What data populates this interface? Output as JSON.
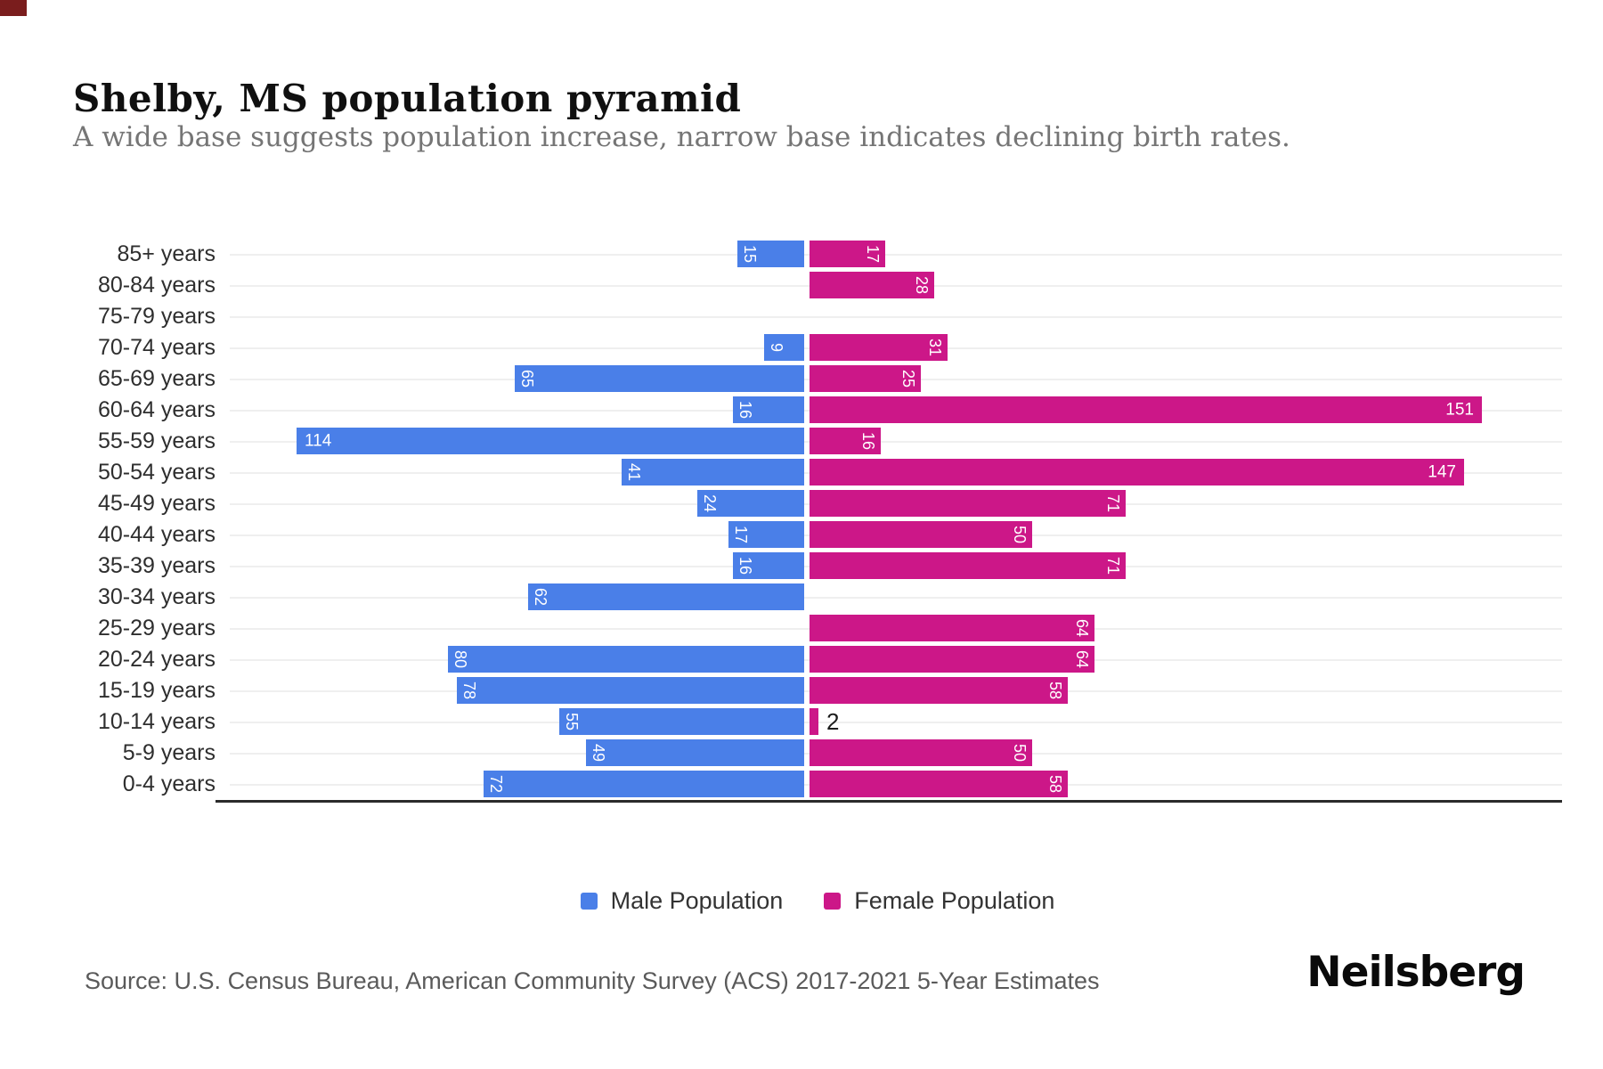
{
  "page": {
    "title": "Shelby, MS population pyramid",
    "subtitle": "A wide base suggests population increase, narrow base indicates declining birth rates.",
    "source": "Source: U.S. Census Bureau, American Community Survey (ACS) 2017-2021 5-Year Estimates",
    "brand": "Neilsberg"
  },
  "legend": {
    "male_label": "Male Population",
    "female_label": "Female Population"
  },
  "colors": {
    "male": "#4a7fe8",
    "female": "#cc1788",
    "gridline": "#efefef",
    "baseline": "#2b2b2b",
    "title": "#101010",
    "subtitle": "#757575"
  },
  "chart_data": {
    "type": "bar",
    "subtype": "population-pyramid",
    "orientation": "horizontal",
    "title": "Shelby, MS population pyramid",
    "categories": [
      "85+ years",
      "80-84 years",
      "75-79 years",
      "70-74 years",
      "65-69 years",
      "60-64 years",
      "55-59 years",
      "50-54 years",
      "45-49 years",
      "40-44 years",
      "35-39 years",
      "30-34 years",
      "25-29 years",
      "20-24 years",
      "15-19 years",
      "10-14 years",
      "5-9 years",
      "0-4 years"
    ],
    "series": [
      {
        "name": "Male Population",
        "side": "left",
        "color": "#4a7fe8",
        "values": [
          15,
          0,
          0,
          9,
          65,
          16,
          114,
          41,
          24,
          17,
          16,
          62,
          0,
          80,
          78,
          55,
          49,
          72
        ]
      },
      {
        "name": "Female Population",
        "side": "right",
        "color": "#cc1788",
        "values": [
          17,
          28,
          0,
          31,
          25,
          151,
          16,
          147,
          71,
          50,
          71,
          0,
          64,
          64,
          58,
          2,
          50,
          58
        ]
      }
    ],
    "value_labels": "shown on bars (white, rotated for short bars; horizontal for values >= 100; dark outside label for tiny bars)",
    "axis": {
      "x_ticks_visible": false,
      "male_axis_max": 129,
      "female_axis_max": 168
    },
    "grid": "horizontal category gridlines",
    "legend_position": "bottom-center"
  }
}
